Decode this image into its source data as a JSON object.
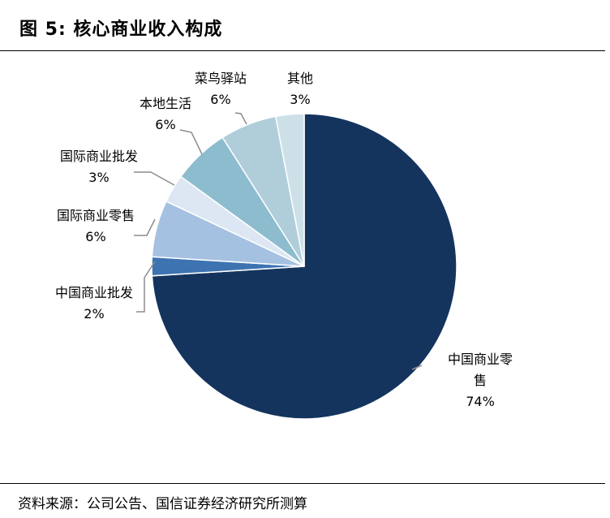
{
  "figure": {
    "title": "图 5:  核心商业收入构成",
    "source": "资料来源：公司公告、国信证券经济研究所测算"
  },
  "chart_data": {
    "type": "pie",
    "start": "12 o'clock",
    "direction": "clockwise",
    "slices": [
      {
        "name": "中国商业零售",
        "name_lines": [
          "中国商业零",
          "售"
        ],
        "value": 74,
        "value_label": "74%",
        "color": "#14345e"
      },
      {
        "name": "中国商业批发",
        "name_lines": [
          "中国商业批发"
        ],
        "value": 2,
        "value_label": "2%",
        "color": "#3d73b0"
      },
      {
        "name": "国际商业零售",
        "name_lines": [
          "国际商业零售"
        ],
        "value": 6,
        "value_label": "6%",
        "color": "#a5c1e1"
      },
      {
        "name": "国际商业批发",
        "name_lines": [
          "国际商业批发"
        ],
        "value": 3,
        "value_label": "3%",
        "color": "#dce7f3"
      },
      {
        "name": "本地生活",
        "name_lines": [
          "本地生活"
        ],
        "value": 6,
        "value_label": "6%",
        "color": "#8dbccf"
      },
      {
        "name": "菜鸟驿站",
        "name_lines": [
          "菜鸟驿站"
        ],
        "value": 6,
        "value_label": "6%",
        "color": "#b0ceda"
      },
      {
        "name": "其他",
        "name_lines": [
          "其他"
        ],
        "value": 3,
        "value_label": "3%",
        "color": "#cde0e8"
      }
    ]
  }
}
